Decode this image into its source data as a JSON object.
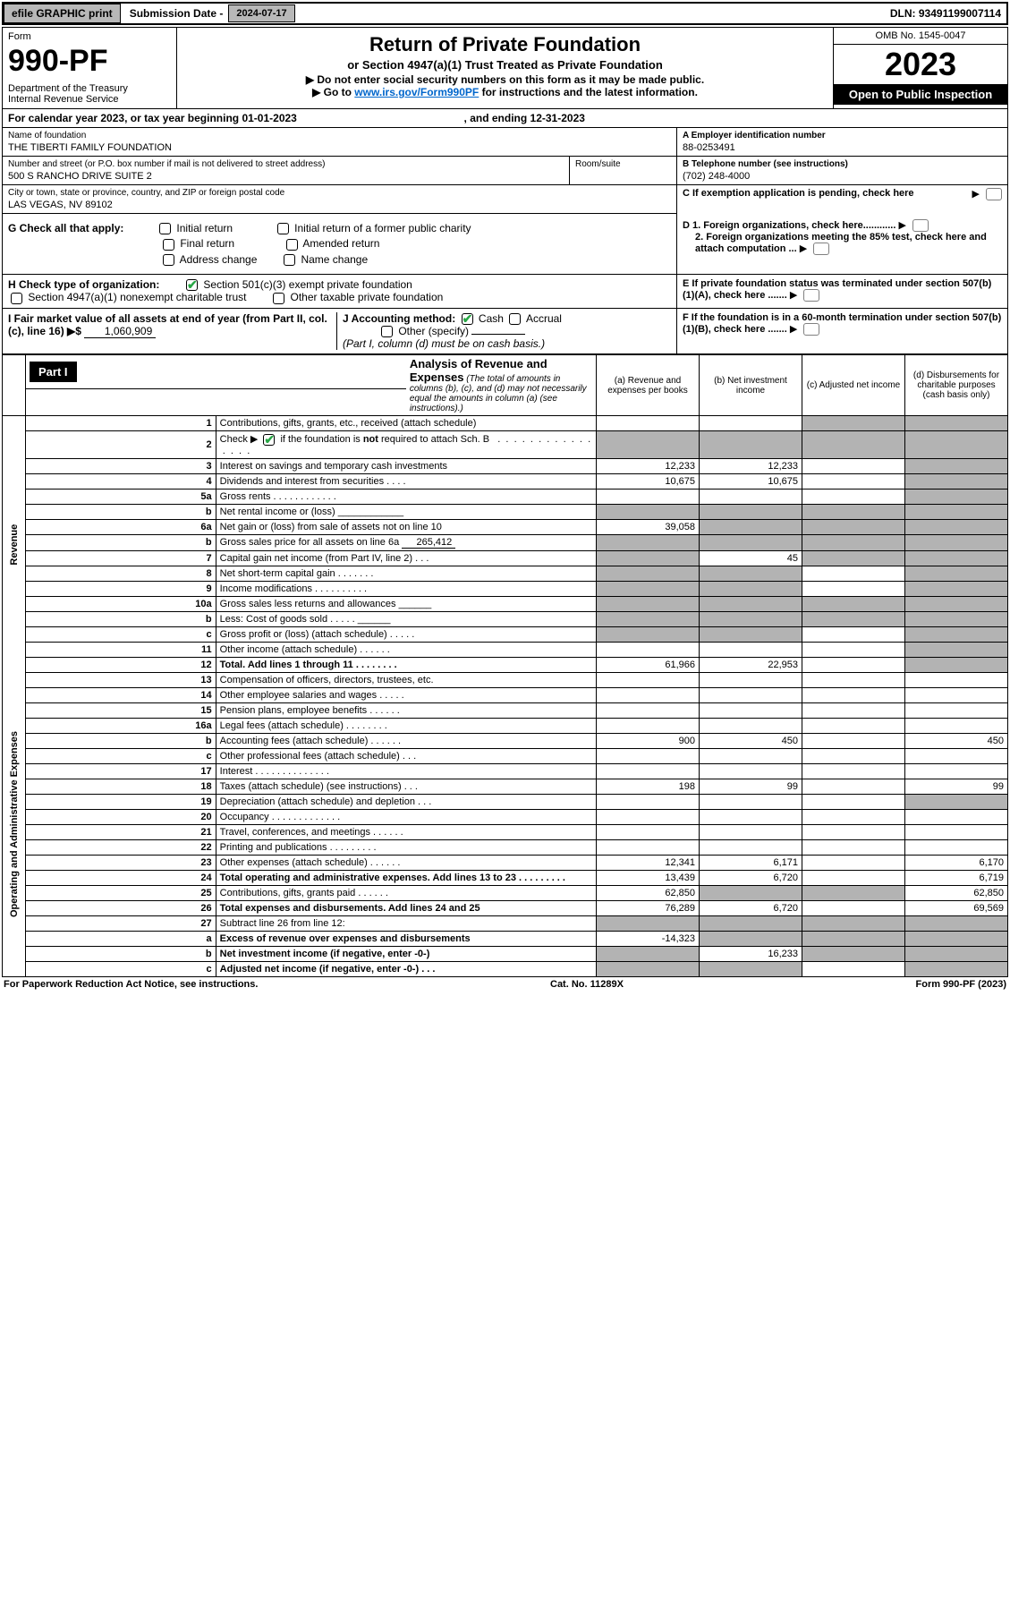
{
  "topbar": {
    "efile_btn": "efile GRAPHIC print",
    "sub_label": "Submission Date - ",
    "sub_date": "2024-07-17",
    "dln": "DLN: 93491199007114"
  },
  "header": {
    "form_word": "Form",
    "form_num": "990-PF",
    "dept": "Department of the Treasury",
    "irs": "Internal Revenue Service",
    "title": "Return of Private Foundation",
    "subtitle": "or Section 4947(a)(1) Trust Treated as Private Foundation",
    "note1": "▶ Do not enter social security numbers on this form as it may be made public.",
    "note2_pre": "▶ Go to ",
    "note2_link": "www.irs.gov/Form990PF",
    "note2_post": " for instructions and the latest information.",
    "omb": "OMB No. 1545-0047",
    "year": "2023",
    "open": "Open to Public Inspection"
  },
  "cal": {
    "text_pre": "For calendar year 2023, or tax year beginning ",
    "begin": "01-01-2023",
    "mid": " , and ending ",
    "end": "12-31-2023"
  },
  "info": {
    "name_lbl": "Name of foundation",
    "name_val": "THE TIBERTI FAMILY FOUNDATION",
    "addr_lbl": "Number and street (or P.O. box number if mail is not delivered to street address)",
    "addr_val": "500 S RANCHO DRIVE SUITE 2",
    "room_lbl": "Room/suite",
    "city_lbl": "City or town, state or province, country, and ZIP or foreign postal code",
    "city_val": "LAS VEGAS, NV  89102",
    "ein_lbl": "A Employer identification number",
    "ein_val": "88-0253491",
    "phone_lbl": "B Telephone number (see instructions)",
    "phone_val": "(702) 248-4000",
    "c_lbl": "C If exemption application is pending, check here"
  },
  "checks": {
    "g_label": "G Check all that apply:",
    "g_items": [
      "Initial return",
      "Final return",
      "Address change",
      "Initial return of a former public charity",
      "Amended return",
      "Name change"
    ],
    "h_label": "H Check type of organization:",
    "h_501c3": "Section 501(c)(3) exempt private foundation",
    "h_4947": "Section 4947(a)(1) nonexempt charitable trust",
    "h_other": "Other taxable private foundation",
    "i_label": "I Fair market value of all assets at end of year (from Part II, col. (c), line 16) ▶$ ",
    "i_val": "1,060,909",
    "j_label": "J Accounting method:",
    "j_cash": "Cash",
    "j_accrual": "Accrual",
    "j_other": "Other (specify)",
    "j_note": "(Part I, column (d) must be on cash basis.)",
    "d1": "D 1. Foreign organizations, check here............",
    "d2": "2. Foreign organizations meeting the 85% test, check here and attach computation ...",
    "e": "E  If private foundation status was terminated under section 507(b)(1)(A), check here .......",
    "f": "F  If the foundation is in a 60-month termination under section 507(b)(1)(B), check here ......."
  },
  "part1": {
    "label": "Part I",
    "title": "Analysis of Revenue and Expenses",
    "note": "(The total of amounts in columns (b), (c), and (d) may not necessarily equal the amounts in column (a) (see instructions).)",
    "col_a": "(a)   Revenue and expenses per books",
    "col_b": "(b)   Net investment income",
    "col_c": "(c)   Adjusted net income",
    "col_d": "(d)   Disbursements for charitable purposes (cash basis only)"
  },
  "sides": {
    "rev": "Revenue",
    "op": "Operating and Administrative Expenses"
  },
  "rows": [
    {
      "n": "1",
      "d": "Contributions, gifts, grants, etc., received (attach schedule)",
      "a": "",
      "b": "",
      "c": "s",
      "dsh": "s"
    },
    {
      "n": "2",
      "d": "Check ▶ ☑ if the foundation is not required to attach Sch. B   .  .  .  .  .  .  .  .  .  .  .  .  .  .  .  .",
      "a": "s",
      "b": "s",
      "c": "s",
      "dsh": "s",
      "chk": true
    },
    {
      "n": "3",
      "d": "Interest on savings and temporary cash investments",
      "a": "12,233",
      "b": "12,233",
      "c": "",
      "dsh": "s"
    },
    {
      "n": "4",
      "d": "Dividends and interest from securities   .   .   .   .",
      "a": "10,675",
      "b": "10,675",
      "c": "",
      "dsh": "s"
    },
    {
      "n": "5a",
      "d": "Gross rents   .   .   .   .   .   .   .   .   .   .   .   .",
      "a": "",
      "b": "",
      "c": "",
      "dsh": "s"
    },
    {
      "n": "b",
      "d": "Net rental income or (loss)   ____________",
      "a": "s",
      "b": "s",
      "c": "s",
      "dsh": "s"
    },
    {
      "n": "6a",
      "d": "Net gain or (loss) from sale of assets not on line 10",
      "a": "39,058",
      "b": "s",
      "c": "s",
      "dsh": "s"
    },
    {
      "n": "b",
      "d": "Gross sales price for all assets on line 6a",
      "sub": "265,412",
      "a": "s",
      "b": "s",
      "c": "s",
      "dsh": "s"
    },
    {
      "n": "7",
      "d": "Capital gain net income (from Part IV, line 2)   .   .   .",
      "a": "s",
      "b": "45",
      "c": "s",
      "dsh": "s"
    },
    {
      "n": "8",
      "d": "Net short-term capital gain   .   .   .   .   .   .   .",
      "a": "s",
      "b": "s",
      "c": "",
      "dsh": "s"
    },
    {
      "n": "9",
      "d": "Income modifications  .   .   .   .   .   .   .   .   .   .",
      "a": "s",
      "b": "s",
      "c": "",
      "dsh": "s"
    },
    {
      "n": "10a",
      "d": "Gross sales less returns and allowances  ______",
      "a": "s",
      "b": "s",
      "c": "s",
      "dsh": "s"
    },
    {
      "n": "b",
      "d": "Less: Cost of goods sold   .   .   .   .   .   ______",
      "a": "s",
      "b": "s",
      "c": "s",
      "dsh": "s"
    },
    {
      "n": "c",
      "d": "Gross profit or (loss) (attach schedule)   .   .   .   .   .",
      "a": "s",
      "b": "s",
      "c": "",
      "dsh": "s"
    },
    {
      "n": "11",
      "d": "Other income (attach schedule)   .   .   .   .   .   .",
      "a": "",
      "b": "",
      "c": "",
      "dsh": "s"
    },
    {
      "n": "12",
      "d": "Total. Add lines 1 through 11   .   .   .   .   .   .   .   .",
      "a": "61,966",
      "b": "22,953",
      "c": "",
      "dsh": "s",
      "bold": true
    },
    {
      "n": "13",
      "d": "Compensation of officers, directors, trustees, etc.",
      "a": "",
      "b": "",
      "c": "",
      "dsh": ""
    },
    {
      "n": "14",
      "d": "Other employee salaries and wages   .   .   .   .   .",
      "a": "",
      "b": "",
      "c": "",
      "dsh": ""
    },
    {
      "n": "15",
      "d": "Pension plans, employee benefits  .   .   .   .   .   .",
      "a": "",
      "b": "",
      "c": "",
      "dsh": ""
    },
    {
      "n": "16a",
      "d": "Legal fees (attach schedule)  .   .   .   .   .   .   .   .",
      "a": "",
      "b": "",
      "c": "",
      "dsh": ""
    },
    {
      "n": "b",
      "d": "Accounting fees (attach schedule)  .   .   .   .   .   .",
      "a": "900",
      "b": "450",
      "c": "",
      "dsh": "450"
    },
    {
      "n": "c",
      "d": "Other professional fees (attach schedule)   .   .   .",
      "a": "",
      "b": "",
      "c": "",
      "dsh": ""
    },
    {
      "n": "17",
      "d": "Interest  .   .   .   .   .   .   .   .   .   .   .   .   .   .",
      "a": "",
      "b": "",
      "c": "",
      "dsh": ""
    },
    {
      "n": "18",
      "d": "Taxes (attach schedule) (see instructions)   .   .   .",
      "a": "198",
      "b": "99",
      "c": "",
      "dsh": "99"
    },
    {
      "n": "19",
      "d": "Depreciation (attach schedule) and depletion   .   .   .",
      "a": "",
      "b": "",
      "c": "",
      "dsh": "s"
    },
    {
      "n": "20",
      "d": "Occupancy  .   .   .   .   .   .   .   .   .   .   .   .   .",
      "a": "",
      "b": "",
      "c": "",
      "dsh": ""
    },
    {
      "n": "21",
      "d": "Travel, conferences, and meetings  .   .   .   .   .   .",
      "a": "",
      "b": "",
      "c": "",
      "dsh": ""
    },
    {
      "n": "22",
      "d": "Printing and publications  .   .   .   .   .   .   .   .   .",
      "a": "",
      "b": "",
      "c": "",
      "dsh": ""
    },
    {
      "n": "23",
      "d": "Other expenses (attach schedule)  .   .   .   .   .   .",
      "a": "12,341",
      "b": "6,171",
      "c": "",
      "dsh": "6,170"
    },
    {
      "n": "24",
      "d": "Total operating and administrative expenses. Add lines 13 to 23   .   .   .   .   .   .   .   .   .",
      "a": "13,439",
      "b": "6,720",
      "c": "",
      "dsh": "6,719",
      "bold": true
    },
    {
      "n": "25",
      "d": "Contributions, gifts, grants paid   .   .   .   .   .   .",
      "a": "62,850",
      "b": "s",
      "c": "s",
      "dsh": "62,850"
    },
    {
      "n": "26",
      "d": "Total expenses and disbursements. Add lines 24 and 25",
      "a": "76,289",
      "b": "6,720",
      "c": "",
      "dsh": "69,569",
      "bold": true
    },
    {
      "n": "27",
      "d": "Subtract line 26 from line 12:",
      "a": "s",
      "b": "s",
      "c": "s",
      "dsh": "s"
    },
    {
      "n": "a",
      "d": "Excess of revenue over expenses and disbursements",
      "a": "-14,323",
      "b": "s",
      "c": "s",
      "dsh": "s",
      "bold": true
    },
    {
      "n": "b",
      "d": "Net investment income (if negative, enter -0-)",
      "a": "s",
      "b": "16,233",
      "c": "s",
      "dsh": "s",
      "bold": true
    },
    {
      "n": "c",
      "d": "Adjusted net income (if negative, enter -0-)   .   .   .",
      "a": "s",
      "b": "s",
      "c": "",
      "dsh": "s",
      "bold": true
    }
  ],
  "footer": {
    "left": "For Paperwork Reduction Act Notice, see instructions.",
    "mid": "Cat. No. 11289X",
    "right": "Form 990-PF (2023)"
  }
}
